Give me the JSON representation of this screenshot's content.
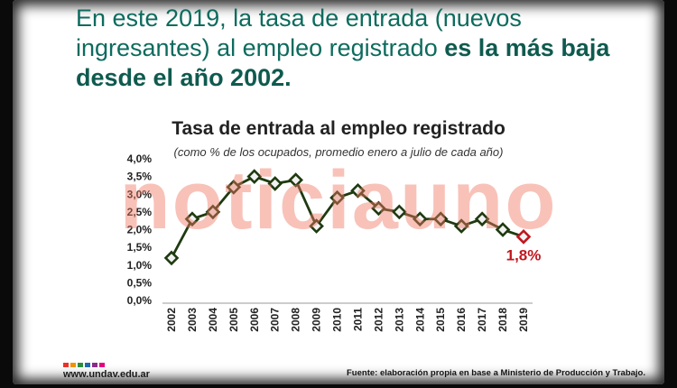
{
  "headline": {
    "normal": "En este 2019, la tasa de entrada (nuevos ingresantes) al empleo registrado ",
    "bold": "es la más baja desde el año 2002."
  },
  "watermark": "noticiauno",
  "footer": {
    "url": "www.undav.edu.ar",
    "source": "Fuente: elaboración propia en base a Ministerio de Producción y Trabajo.",
    "logo_colors": [
      "#e8332a",
      "#f39200",
      "#2a8f3c",
      "#1d6ab1",
      "#8c2a8c",
      "#e6007e"
    ]
  },
  "chart_data": {
    "type": "line",
    "title": "Tasa de entrada al empleo registrado",
    "subtitle": "(como % de los ocupados, promedio enero a julio de cada año)",
    "categories": [
      "2002",
      "2003",
      "2004",
      "2005",
      "2006",
      "2007",
      "2008",
      "2009",
      "2010",
      "2011",
      "2012",
      "2013",
      "2014",
      "2015",
      "2016",
      "2017",
      "2018",
      "2019"
    ],
    "values": [
      1.2,
      2.3,
      2.5,
      3.2,
      3.5,
      3.3,
      3.4,
      2.1,
      2.9,
      3.1,
      2.6,
      2.5,
      2.3,
      2.3,
      2.1,
      2.3,
      2.0,
      1.8
    ],
    "ylim": [
      0,
      4
    ],
    "yticks": [
      "0,0%",
      "0,5%",
      "1,0%",
      "1,5%",
      "2,0%",
      "2,5%",
      "3,0%",
      "3,5%",
      "4,0%"
    ],
    "highlight_label": "1,8%",
    "colors": {
      "line": "#1f3a10",
      "marker_fill": "#f2f2f2",
      "highlight": "#c0171f"
    }
  }
}
